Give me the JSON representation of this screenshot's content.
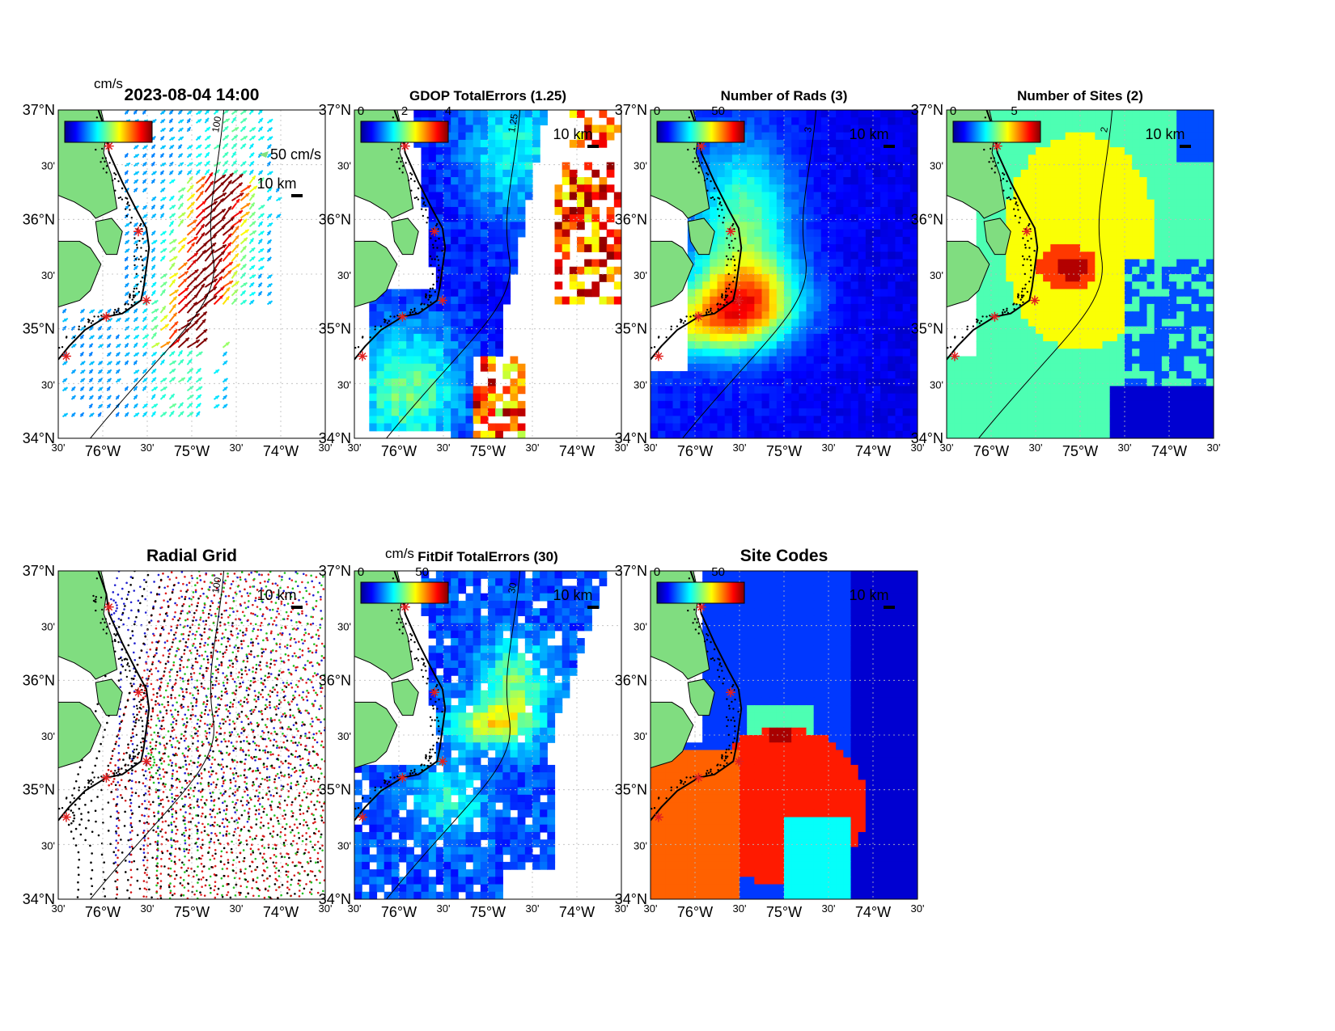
{
  "figure": {
    "top_cbar_unit": "cm/s",
    "bottom_cbar_unit": "cm/s"
  },
  "axes": {
    "lat_labels": [
      "37°N",
      "30'",
      "36°N",
      "30'",
      "35°N",
      "30'",
      "34°N"
    ],
    "lon_labels": [
      "30'",
      "76°W",
      "30'",
      "75°W",
      "30'",
      "74°W",
      "30'"
    ]
  },
  "panels": [
    {
      "id": "totals",
      "title": "2023-08-04 14:00",
      "colorbar_ticks": [],
      "legend_arrow": "50 cm/s",
      "scale_bar": "10 km",
      "contour_label": "100",
      "kind": "vectors",
      "colors": {
        "low": "#0a3fe0",
        "mid": "#3fd0ff",
        "high": "#8b0000"
      }
    },
    {
      "id": "gdop",
      "title": "GDOP TotalErrors (1.25)",
      "colorbar_ticks": [
        "0",
        "2",
        "4"
      ],
      "scale_bar": "10 km",
      "contour_label": "1.25",
      "kind": "field",
      "field_type": "gdop"
    },
    {
      "id": "nrads",
      "title": "Number of Rads (3)",
      "colorbar_ticks": [
        "0",
        "50"
      ],
      "scale_bar": "10 km",
      "contour_label": "3",
      "kind": "field",
      "field_type": "rads"
    },
    {
      "id": "nsites",
      "title": "Number of Sites (2)",
      "colorbar_ticks": [
        "0",
        "5"
      ],
      "scale_bar": "10 km",
      "contour_label": "2",
      "kind": "field",
      "field_type": "sites"
    },
    {
      "id": "radgrid",
      "title": "Radial Grid",
      "colorbar_ticks": [],
      "scale_bar": "10 km",
      "contour_label": "100",
      "kind": "radial",
      "site_colors": [
        "#2020d0",
        "#e02020",
        "#20c020",
        "#d01010",
        "#000000"
      ]
    },
    {
      "id": "fitdif",
      "title": "FitDif TotalErrors (30)",
      "colorbar_ticks": [
        "0",
        "50"
      ],
      "scale_bar": "10 km",
      "contour_label": "30",
      "kind": "field",
      "field_type": "fitdif"
    },
    {
      "id": "sitecodes",
      "title": "Site Codes",
      "colorbar_ticks": [
        "0",
        "50"
      ],
      "scale_bar": "10 km",
      "contour_label": "",
      "kind": "field",
      "field_type": "codes"
    }
  ],
  "colors": {
    "land": "#80dd80",
    "coast": "#000000",
    "site_marker": "#e02020",
    "grid": "#bbbbbb"
  }
}
